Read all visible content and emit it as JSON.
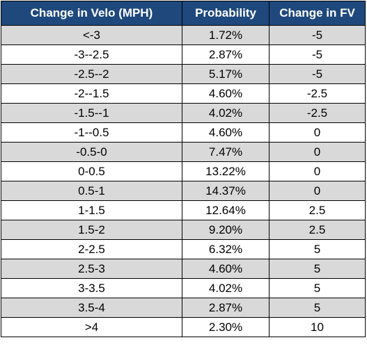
{
  "table": {
    "headers": [
      "Change in Velo (MPH)",
      "Probability",
      "Change in FV"
    ],
    "rows": [
      [
        "<-3",
        "1.72%",
        "-5"
      ],
      [
        "-3--2.5",
        "2.87%",
        "-5"
      ],
      [
        "-2.5--2",
        "5.17%",
        "-5"
      ],
      [
        "-2--1.5",
        "4.60%",
        "-2.5"
      ],
      [
        "-1.5--1",
        "4.02%",
        "-2.5"
      ],
      [
        "-1--0.5",
        "4.60%",
        "0"
      ],
      [
        "-0.5-0",
        "7.47%",
        "0"
      ],
      [
        "0-0.5",
        "13.22%",
        "0"
      ],
      [
        "0.5-1",
        "14.37%",
        "0"
      ],
      [
        "1-1.5",
        "12.64%",
        "2.5"
      ],
      [
        "1.5-2",
        "9.20%",
        "2.5"
      ],
      [
        "2-2.5",
        "6.32%",
        "5"
      ],
      [
        "2.5-3",
        "4.60%",
        "5"
      ],
      [
        "3-3.5",
        "4.02%",
        "5"
      ],
      [
        "3.5-4",
        "2.87%",
        "5"
      ],
      [
        ">4",
        "2.30%",
        "10"
      ]
    ]
  },
  "colors": {
    "header_bg": "#1f497d",
    "header_text": "#ffffff",
    "row_shade": "#d9d9d9",
    "row_plain": "#ffffff",
    "grid": "#000000"
  }
}
